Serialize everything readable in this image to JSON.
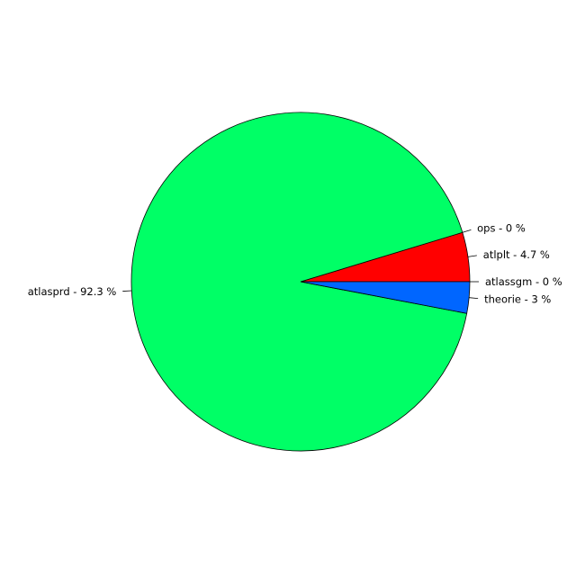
{
  "chart_data": {
    "type": "pie",
    "title": "",
    "start": "counter-clockwise from 3 o'clock",
    "slices": [
      {
        "name": "atlassgm",
        "value": 0.0,
        "label": "atlassgm - 0 %",
        "color": "#8000ff"
      },
      {
        "name": "atlplt",
        "value": 4.7,
        "label": "atlplt - 4.7 %",
        "color": "#ff0000"
      },
      {
        "name": "ops",
        "value": 0.0,
        "label": "ops - 0 %",
        "color": "#ffff00"
      },
      {
        "name": "atlasprd",
        "value": 92.3,
        "label": "atlasprd - 92.3 %",
        "color": "#00ff66"
      },
      {
        "name": "theorie",
        "value": 3.0,
        "label": "theorie - 3 %",
        "color": "#0066ff"
      }
    ]
  }
}
